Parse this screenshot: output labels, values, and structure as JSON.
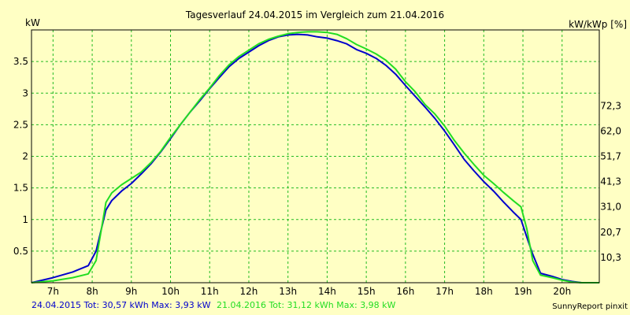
{
  "chart_data": {
    "type": "line",
    "title": "Tagesverlauf 24.04.2015 im Vergleich zum 21.04.2016",
    "ylabel_left": "kW",
    "ylabel_right": "kW/kWp [%]",
    "xlim": [
      6.45,
      20.95
    ],
    "ylim": [
      0,
      4
    ],
    "grid": true,
    "x_ticks": [
      7,
      8,
      9,
      10,
      11,
      12,
      13,
      14,
      15,
      16,
      17,
      18,
      19,
      20
    ],
    "x_tick_labels": [
      "7h",
      "8h",
      "9h",
      "10h",
      "11h",
      "12h",
      "13h",
      "14h",
      "15h",
      "16h",
      "17h",
      "18h",
      "19h",
      "20h"
    ],
    "y_ticks_left": [
      0.5,
      1,
      1.5,
      2,
      2.5,
      3,
      3.5
    ],
    "y_tick_labels_left": [
      "0.5",
      "1",
      "1.5",
      "2",
      "2.5",
      "3",
      "3.5"
    ],
    "y_ticks_right": [
      0.4,
      0.8,
      1.2,
      1.6,
      2.0,
      2.4,
      2.8
    ],
    "y_tick_labels_right": [
      "10,3",
      "20,7",
      "31,0",
      "41,3",
      "51,7",
      "62,0",
      "72,3"
    ],
    "series": [
      {
        "name": "24.04.2015",
        "color": "#0000CC",
        "x": [
          6.45,
          7.0,
          7.5,
          7.9,
          8.1,
          8.35,
          8.5,
          8.75,
          9.0,
          9.25,
          9.5,
          9.75,
          10.0,
          10.25,
          10.5,
          10.75,
          11.0,
          11.25,
          11.5,
          11.75,
          12.0,
          12.25,
          12.5,
          12.75,
          13.0,
          13.25,
          13.5,
          13.75,
          14.0,
          14.25,
          14.5,
          14.75,
          15.0,
          15.25,
          15.5,
          15.75,
          16.0,
          16.25,
          16.5,
          16.75,
          17.0,
          17.25,
          17.5,
          17.75,
          18.0,
          18.25,
          18.5,
          18.75,
          18.95,
          19.1,
          19.25,
          19.45,
          19.75,
          20.0,
          20.25,
          20.5,
          20.95
        ],
        "y": [
          0.0,
          0.08,
          0.17,
          0.27,
          0.5,
          1.15,
          1.3,
          1.45,
          1.57,
          1.72,
          1.88,
          2.07,
          2.28,
          2.5,
          2.7,
          2.88,
          3.07,
          3.25,
          3.42,
          3.55,
          3.65,
          3.75,
          3.83,
          3.89,
          3.92,
          3.93,
          3.92,
          3.89,
          3.87,
          3.83,
          3.78,
          3.69,
          3.63,
          3.55,
          3.44,
          3.3,
          3.12,
          2.95,
          2.78,
          2.6,
          2.4,
          2.18,
          1.95,
          1.77,
          1.6,
          1.45,
          1.28,
          1.12,
          1.0,
          0.72,
          0.45,
          0.15,
          0.1,
          0.05,
          0.02,
          0.0,
          0.0
        ]
      },
      {
        "name": "21.04.2016",
        "color": "#22DD22",
        "x": [
          6.45,
          7.0,
          7.5,
          7.9,
          8.1,
          8.35,
          8.5,
          8.75,
          9.0,
          9.25,
          9.5,
          9.75,
          10.0,
          10.25,
          10.5,
          10.75,
          11.0,
          11.25,
          11.5,
          11.75,
          12.0,
          12.25,
          12.5,
          12.75,
          13.0,
          13.25,
          13.5,
          13.75,
          14.0,
          14.25,
          14.5,
          14.75,
          15.0,
          15.25,
          15.5,
          15.75,
          16.0,
          16.25,
          16.5,
          16.75,
          17.0,
          17.25,
          17.5,
          17.75,
          18.0,
          18.25,
          18.5,
          18.75,
          18.95,
          19.1,
          19.25,
          19.45,
          19.75,
          20.0,
          20.25,
          20.5,
          20.95
        ],
        "y": [
          0.0,
          0.03,
          0.08,
          0.14,
          0.35,
          1.27,
          1.42,
          1.55,
          1.65,
          1.75,
          1.9,
          2.08,
          2.3,
          2.5,
          2.7,
          2.9,
          3.08,
          3.28,
          3.45,
          3.58,
          3.68,
          3.78,
          3.85,
          3.9,
          3.94,
          3.96,
          3.97,
          3.97,
          3.96,
          3.93,
          3.86,
          3.77,
          3.7,
          3.62,
          3.52,
          3.38,
          3.18,
          3.02,
          2.82,
          2.67,
          2.48,
          2.25,
          2.05,
          1.87,
          1.7,
          1.57,
          1.43,
          1.3,
          1.2,
          0.85,
          0.35,
          0.12,
          0.08,
          0.04,
          0.01,
          0.0,
          0.0
        ]
      }
    ]
  },
  "legend": {
    "s1": "24.04.2015 Tot: 30,57 kWh Max: 3,93 kW",
    "s2": "21.04.2016 Tot: 31,12 kWh Max: 3,98 kW"
  },
  "footer": "SunnyReport pinxit"
}
